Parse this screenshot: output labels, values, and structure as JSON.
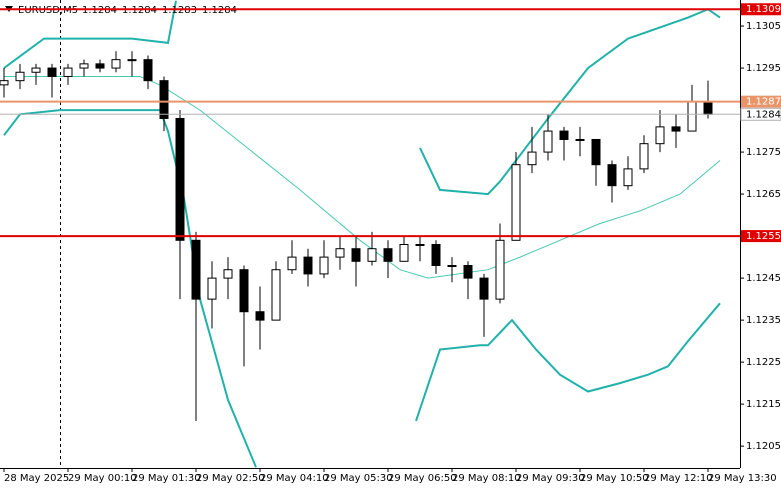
{
  "chart_data": {
    "type": "candlestick",
    "symbol": "EURUSD,M5",
    "last_ohlc": [
      1.1284,
      1.1284,
      1.1283,
      1.1284
    ],
    "xlim": [
      -1,
      184
    ],
    "ylim": [
      1.11998,
      1.13112
    ],
    "yticks": [
      1.1305,
      1.1295,
      1.1275,
      1.1265,
      1.1245,
      1.1235,
      1.1225,
      1.1215,
      1.1205
    ],
    "xticks": [
      {
        "value": 0,
        "label": "28 May 2025"
      },
      {
        "value": 16,
        "label": "29 May 00:10"
      },
      {
        "value": 32,
        "label": "29 May 01:30"
      },
      {
        "value": 48,
        "label": "29 May 02:50"
      },
      {
        "value": 64,
        "label": "29 May 04:10"
      },
      {
        "value": 80,
        "label": "29 May 05:30"
      },
      {
        "value": 96,
        "label": "29 May 06:50"
      },
      {
        "value": 112,
        "label": "29 May 08:10"
      },
      {
        "value": 128,
        "label": "29 May 09:30"
      },
      {
        "value": 144,
        "label": "29 May 10:50"
      },
      {
        "value": 160,
        "label": "29 May 12:10"
      },
      {
        "value": 176,
        "label": "29 May 13:30"
      }
    ],
    "candles": {
      "x": [
        0,
        4,
        8,
        12,
        16,
        20,
        24,
        28,
        32,
        36,
        40,
        44,
        48,
        52,
        56,
        60,
        64,
        68,
        72,
        76,
        80,
        84,
        88,
        92,
        96,
        100,
        104,
        108,
        112,
        116,
        120,
        124,
        128,
        132,
        136,
        140,
        144,
        148,
        152,
        156,
        160,
        164,
        168,
        172,
        176
      ],
      "open": [
        1.1291,
        1.1292,
        1.1294,
        1.1295,
        1.1293,
        1.1295,
        1.1296,
        1.1295,
        1.1297,
        1.1297,
        1.1292,
        1.1283,
        1.1254,
        1.124,
        1.1245,
        1.1247,
        1.1237,
        1.1235,
        1.1247,
        1.125,
        1.1246,
        1.125,
        1.1252,
        1.1249,
        1.1252,
        1.1249,
        1.1253,
        1.1253,
        1.1248,
        1.1248,
        1.1245,
        1.124,
        1.1254,
        1.1272,
        1.1275,
        1.128,
        1.1278,
        1.1278,
        1.1272,
        1.1267,
        1.1271,
        1.1277,
        1.1281,
        1.128,
        1.1287
      ],
      "high": [
        1.1295,
        1.1296,
        1.1296,
        1.1296,
        1.1296,
        1.1297,
        1.1297,
        1.1299,
        1.1299,
        1.1298,
        1.1293,
        1.1285,
        1.1256,
        1.1249,
        1.125,
        1.1248,
        1.1243,
        1.1249,
        1.1254,
        1.1252,
        1.1254,
        1.1255,
        1.1255,
        1.1256,
        1.1254,
        1.1255,
        1.1255,
        1.1254,
        1.125,
        1.1249,
        1.1246,
        1.1258,
        1.1275,
        1.1281,
        1.1284,
        1.1281,
        1.1281,
        1.1278,
        1.1273,
        1.1274,
        1.1279,
        1.1285,
        1.1284,
        1.1291,
        1.1292
      ],
      "low": [
        1.1288,
        1.129,
        1.1291,
        1.1288,
        1.1291,
        1.1293,
        1.1294,
        1.1294,
        1.1293,
        1.129,
        1.128,
        1.124,
        1.1211,
        1.1233,
        1.124,
        1.1224,
        1.1228,
        1.1235,
        1.1246,
        1.1243,
        1.1245,
        1.1247,
        1.1243,
        1.1248,
        1.1245,
        1.1249,
        1.1249,
        1.1246,
        1.1244,
        1.124,
        1.1231,
        1.1239,
        1.1254,
        1.127,
        1.1273,
        1.1273,
        1.1274,
        1.1267,
        1.1263,
        1.1266,
        1.127,
        1.1275,
        1.1276,
        1.128,
        1.1283
      ],
      "close": [
        1.1292,
        1.1294,
        1.1295,
        1.1293,
        1.1295,
        1.1296,
        1.1295,
        1.1297,
        1.1297,
        1.1292,
        1.1283,
        1.1254,
        1.124,
        1.1245,
        1.1247,
        1.1237,
        1.1235,
        1.1247,
        1.125,
        1.1246,
        1.125,
        1.1252,
        1.1249,
        1.1252,
        1.1249,
        1.1253,
        1.1253,
        1.1248,
        1.1248,
        1.1245,
        1.124,
        1.1254,
        1.1272,
        1.1275,
        1.128,
        1.1278,
        1.1278,
        1.1272,
        1.1267,
        1.1271,
        1.1277,
        1.1281,
        1.128,
        1.1287,
        1.1284
      ]
    },
    "bands": [
      {
        "color": "#20b2aa",
        "x": [
          0,
          10,
          32,
          41,
          43,
          93,
          104,
          109,
          121,
          124,
          136,
          146,
          156,
          171,
          176,
          179
        ],
        "values": [
          1.1295,
          1.1302,
          1.1302,
          1.1301,
          1.1311,
          null,
          1.1276,
          1.1266,
          1.1265,
          1.1268,
          1.1283,
          1.1295,
          1.1302,
          1.1307,
          1.1309,
          1.1307
        ]
      },
      {
        "color": "#20b2aa",
        "x": [
          0,
          4,
          14,
          36,
          39,
          41,
          45,
          49,
          56,
          63,
          99,
          103,
          109,
          119,
          121,
          127,
          133,
          139,
          146,
          154,
          161,
          166,
          171,
          179
        ],
        "values": [
          1.1279,
          1.1284,
          1.1285,
          1.1285,
          1.1285,
          1.128,
          1.1264,
          1.124,
          1.1216,
          1.12,
          null,
          1.1211,
          1.1228,
          1.1229,
          1.1229,
          1.1235,
          1.1228,
          1.1222,
          1.1218,
          1.122,
          1.1222,
          1.1224,
          1.123,
          1.1239
        ]
      },
      {
        "color": "#48c9b0",
        "x": [
          0,
          34,
          39,
          49,
          74,
          89,
          99,
          106,
          121,
          129,
          139,
          149,
          159,
          169,
          179
        ],
        "values": [
          1.1293,
          1.1293,
          1.1291,
          1.1285,
          1.1266,
          1.1254,
          1.1247,
          1.1245,
          1.1247,
          1.125,
          1.1254,
          1.1258,
          1.1261,
          1.1265,
          1.1273
        ]
      }
    ],
    "levels": [
      {
        "value": 1.1309,
        "color": "#e00000"
      },
      {
        "value": 1.1287,
        "color": "#e8956a"
      },
      {
        "value": 1.1255,
        "color": "#e00000"
      }
    ],
    "price_line": {
      "value": 1.1284,
      "color": "#b0b0b0"
    }
  }
}
